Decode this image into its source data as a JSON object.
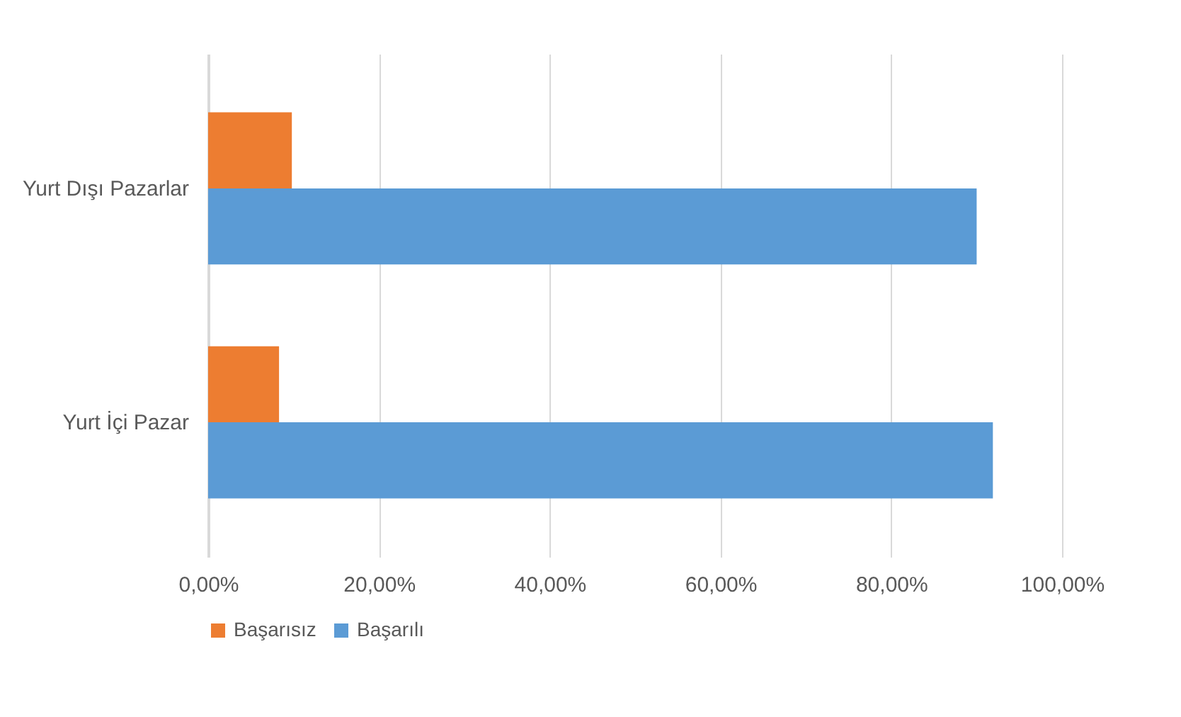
{
  "chart_data": {
    "type": "bar",
    "orientation": "horizontal",
    "categories": [
      "Yurt Dışı Pazarlar",
      "Yurt İçi Pazar"
    ],
    "series": [
      {
        "name": "Başarısız",
        "color": "#ed7d31",
        "values": [
          9.8,
          8.3
        ]
      },
      {
        "name": "Başarılı",
        "color": "#5b9bd5",
        "values": [
          90.0,
          91.9
        ]
      }
    ],
    "xlim": [
      0,
      100
    ],
    "xticks": [
      {
        "value": 0,
        "label": "0,00%"
      },
      {
        "value": 20,
        "label": "20,00%"
      },
      {
        "value": 40,
        "label": "40,00%"
      },
      {
        "value": 60,
        "label": "60,00%"
      },
      {
        "value": 80,
        "label": "80,00%"
      },
      {
        "value": 100,
        "label": "100,00%"
      }
    ],
    "grid": "x",
    "legend": "bottom"
  }
}
